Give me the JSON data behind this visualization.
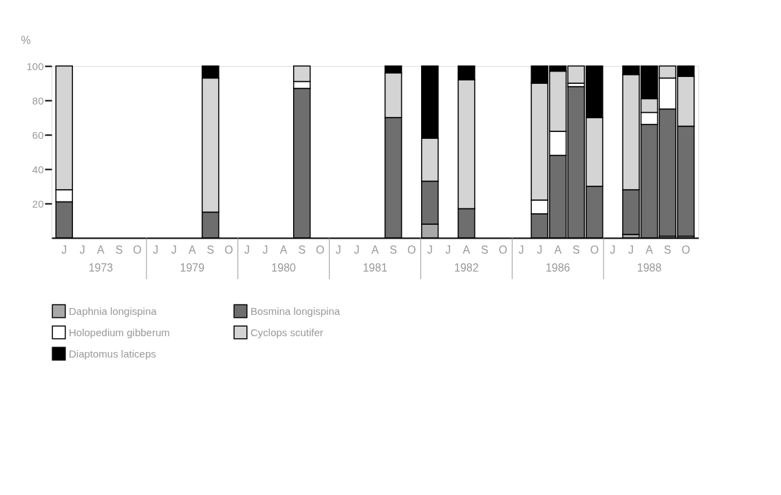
{
  "chart_data": {
    "type": "bar",
    "stacked": true,
    "ylabel": "%",
    "categories": [
      "J",
      "J",
      "A",
      "S",
      "O",
      "J",
      "J",
      "A",
      "S",
      "O",
      "J",
      "J",
      "A",
      "S",
      "O",
      "J",
      "J",
      "A",
      "S",
      "O",
      "J",
      "J",
      "A",
      "S",
      "O",
      "J",
      "J",
      "A",
      "S",
      "O",
      "J",
      "J",
      "A",
      "S",
      "O"
    ],
    "annotations": [
      "1973",
      "1979",
      "1980",
      "1981",
      "1982",
      "1986",
      "1988"
    ],
    "series": [
      {
        "name": "Daphnia longispina",
        "color": "#a8a8a8",
        "values": [
          null,
          null,
          null,
          null,
          null,
          null,
          null,
          null,
          null,
          null,
          null,
          null,
          null,
          null,
          null,
          null,
          null,
          null,
          null,
          null,
          8,
          null,
          null,
          null,
          null,
          null,
          null,
          null,
          null,
          null,
          null,
          2,
          null,
          1,
          1
        ]
      },
      {
        "name": "Bosmina longispina",
        "color": "#6e6e6e",
        "values": [
          21,
          null,
          null,
          null,
          null,
          null,
          null,
          null,
          15,
          null,
          null,
          null,
          null,
          87,
          null,
          null,
          null,
          null,
          70,
          null,
          25,
          null,
          17,
          null,
          null,
          null,
          14,
          48,
          88,
          30,
          null,
          26,
          66,
          74,
          64
        ]
      },
      {
        "name": "Holopedium gibberum",
        "color": "#ffffff",
        "values": [
          7,
          null,
          null,
          null,
          null,
          null,
          null,
          null,
          null,
          null,
          null,
          null,
          null,
          4,
          null,
          null,
          null,
          null,
          null,
          null,
          null,
          null,
          null,
          null,
          null,
          null,
          8,
          14,
          2,
          null,
          null,
          null,
          7,
          18,
          null
        ]
      },
      {
        "name": "Cyclops scutifer",
        "color": "#d4d4d4",
        "values": [
          72,
          null,
          null,
          null,
          null,
          null,
          null,
          null,
          78,
          null,
          null,
          null,
          null,
          9,
          null,
          null,
          null,
          null,
          26,
          null,
          25,
          null,
          75,
          null,
          null,
          null,
          68,
          35,
          10,
          40,
          null,
          67,
          8,
          7,
          29
        ]
      },
      {
        "name": "Diaptomus laticeps",
        "color": "#000000",
        "values": [
          null,
          null,
          null,
          null,
          null,
          null,
          null,
          null,
          7,
          null,
          null,
          null,
          null,
          null,
          null,
          null,
          null,
          null,
          4,
          null,
          42,
          null,
          8,
          null,
          null,
          null,
          10,
          3,
          null,
          30,
          null,
          5,
          19,
          null,
          6
        ]
      }
    ],
    "ylim": [
      0,
      100
    ],
    "yticks": [
      20,
      40,
      60,
      80,
      100
    ],
    "grid": false,
    "legend": "bottom"
  }
}
